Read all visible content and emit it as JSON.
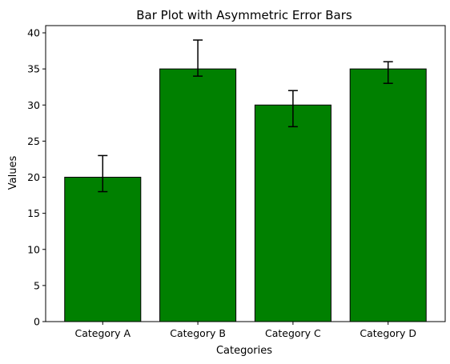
{
  "chart_data": {
    "type": "bar",
    "title": "Bar Plot with Asymmetric Error Bars",
    "xlabel": "Categories",
    "ylabel": "Values",
    "categories": [
      "Category A",
      "Category B",
      "Category C",
      "Category D"
    ],
    "values": [
      20,
      35,
      30,
      35
    ],
    "error_lower": [
      2,
      1,
      3,
      2
    ],
    "error_upper": [
      3,
      4,
      2,
      1
    ],
    "ylim": [
      0,
      41
    ],
    "yticks": [
      0,
      5,
      10,
      15,
      20,
      25,
      30,
      35,
      40
    ],
    "bar_color": "#008000",
    "edge_color": "#000000",
    "error_color": "#000000",
    "grid": false,
    "legend": "none"
  }
}
